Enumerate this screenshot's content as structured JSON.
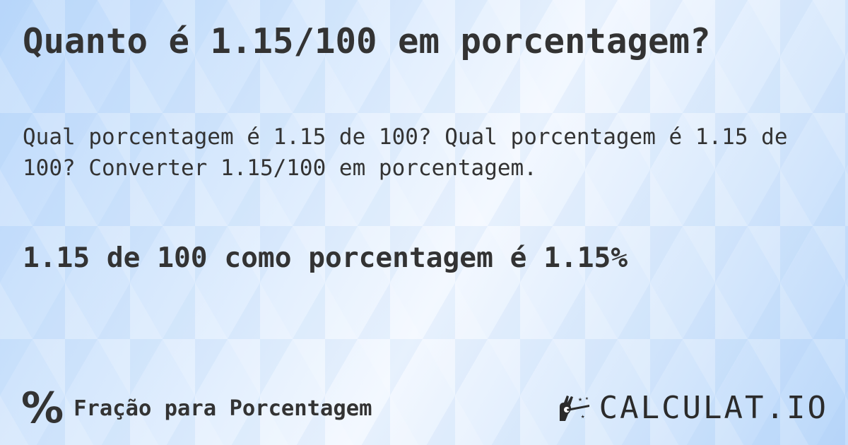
{
  "title": "Quanto é 1.15/100 em porcentagem?",
  "description": "Qual porcentagem é 1.15 de 100? Qual porcentagem é 1.15 de 100? Converter 1.15/100 em porcentagem.",
  "result": "1.15 de 100 como porcentagem é 1.15%",
  "footer": {
    "icon": "percent-icon",
    "symbol": "%",
    "label": "Fração para Porcentagem"
  },
  "logo": {
    "text": "CALCULAT.IO",
    "icon": "magic-hand-icon"
  },
  "colors": {
    "text": "#333333",
    "background": "#d8e9fd"
  }
}
